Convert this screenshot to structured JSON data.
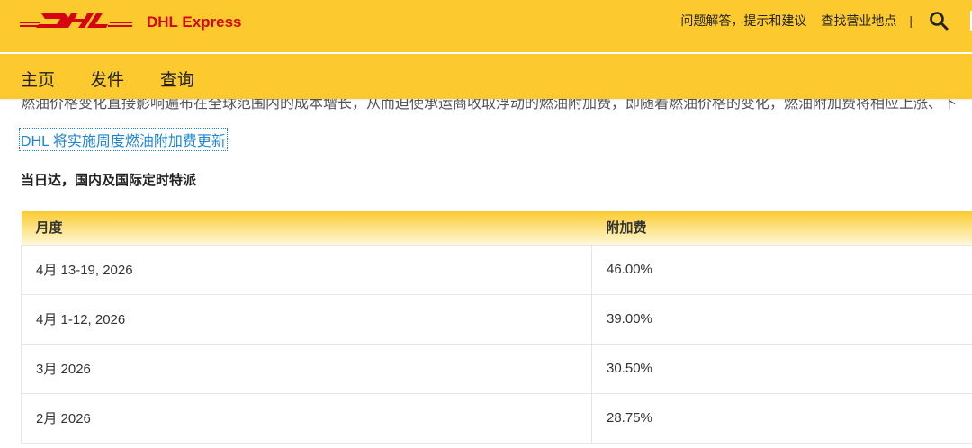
{
  "header": {
    "brand": "DHL Express",
    "links": [
      "问题解答，提示和建议",
      "查找营业地点"
    ],
    "separator": "|"
  },
  "nav": [
    "主页",
    "发件",
    "查询"
  ],
  "intro_text": "燃油价格变化直接影响遍布在全球范围内的成本增长，从而迫使承运商收取浮动的燃油附加费，即随着燃油价格的变化，燃油附加费将相应上涨、下",
  "link": "DHL 将实施周度燃油附加费更新",
  "section_title": "当日达，国内及国际定时特派",
  "table": {
    "headers": [
      "月度",
      "附加费"
    ],
    "rows": [
      [
        "4月 13-19, 2026",
        "46.00%"
      ],
      [
        "4月 1-12, 2026",
        "39.00%"
      ],
      [
        "3月 2026",
        "30.50%"
      ],
      [
        "2月 2026",
        "28.75%"
      ]
    ]
  },
  "colors": {
    "brand_yellow": "#fcca2e",
    "brand_red": "#d40511",
    "link": "#1a85d6"
  }
}
